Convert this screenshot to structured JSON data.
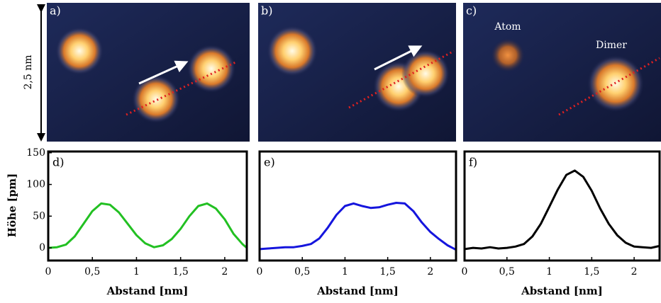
{
  "images": [
    {
      "label": "a)"
    },
    {
      "label": "b)"
    },
    {
      "label": "c)",
      "annotations": [
        "Atom",
        "Dimer"
      ]
    }
  ],
  "scale_label": "2,5 nm",
  "chart_data": [
    {
      "type": "line",
      "panel_label": "d)",
      "xlabel": "Abstand [nm]",
      "ylabel": "Höhe [pm]",
      "x": [
        0,
        0.1,
        0.2,
        0.3,
        0.4,
        0.5,
        0.6,
        0.7,
        0.8,
        0.9,
        1.0,
        1.1,
        1.2,
        1.3,
        1.4,
        1.5,
        1.6,
        1.7,
        1.8,
        1.9,
        2.0,
        2.1,
        2.2,
        2.25
      ],
      "series": [
        {
          "color": "#22c022",
          "values": [
            0,
            1,
            5,
            18,
            38,
            58,
            70,
            68,
            56,
            38,
            20,
            7,
            1,
            4,
            14,
            30,
            50,
            66,
            70,
            62,
            45,
            22,
            6,
            0
          ]
        }
      ],
      "xlim": [
        0,
        2.25
      ],
      "ylim": [
        -20,
        152
      ],
      "xticks": [
        0,
        {
          "value": 0.5,
          "label": "0,5"
        },
        1,
        {
          "value": 1.5,
          "label": "1,5"
        },
        2
      ],
      "yticks": [
        0,
        50,
        100,
        150
      ]
    },
    {
      "type": "line",
      "panel_label": "e)",
      "xlabel": "Abstand [nm]",
      "x": [
        0,
        0.1,
        0.2,
        0.3,
        0.4,
        0.5,
        0.6,
        0.7,
        0.8,
        0.9,
        1.0,
        1.1,
        1.2,
        1.3,
        1.4,
        1.5,
        1.6,
        1.7,
        1.8,
        1.9,
        2.0,
        2.1,
        2.2,
        2.3
      ],
      "series": [
        {
          "color": "#1515dd",
          "values": [
            -2,
            -1,
            0,
            1,
            1,
            3,
            6,
            15,
            32,
            52,
            66,
            70,
            66,
            63,
            64,
            68,
            71,
            70,
            58,
            40,
            25,
            14,
            4,
            -3
          ]
        }
      ],
      "xlim": [
        0,
        2.3
      ],
      "ylim": [
        -20,
        152
      ],
      "xticks": [
        0,
        {
          "value": 0.5,
          "label": "0,5"
        },
        1,
        {
          "value": 1.5,
          "label": "1,5"
        },
        2
      ]
    },
    {
      "type": "line",
      "panel_label": "f)",
      "xlabel": "Abstand [nm]",
      "x": [
        0,
        0.1,
        0.2,
        0.3,
        0.4,
        0.5,
        0.6,
        0.7,
        0.8,
        0.9,
        1.0,
        1.1,
        1.2,
        1.3,
        1.4,
        1.5,
        1.6,
        1.7,
        1.8,
        1.9,
        2.0,
        2.1,
        2.2,
        2.3
      ],
      "series": [
        {
          "color": "#000000",
          "values": [
            -2,
            0,
            -1,
            1,
            -1,
            0,
            2,
            6,
            18,
            38,
            65,
            92,
            115,
            122,
            112,
            90,
            62,
            38,
            20,
            8,
            2,
            1,
            0,
            3
          ]
        }
      ],
      "xlim": [
        0,
        2.3
      ],
      "ylim": [
        -20,
        152
      ],
      "xticks": [
        0,
        {
          "value": 0.5,
          "label": "0,5"
        },
        1,
        {
          "value": 1.5,
          "label": "1,5"
        },
        2
      ]
    }
  ]
}
